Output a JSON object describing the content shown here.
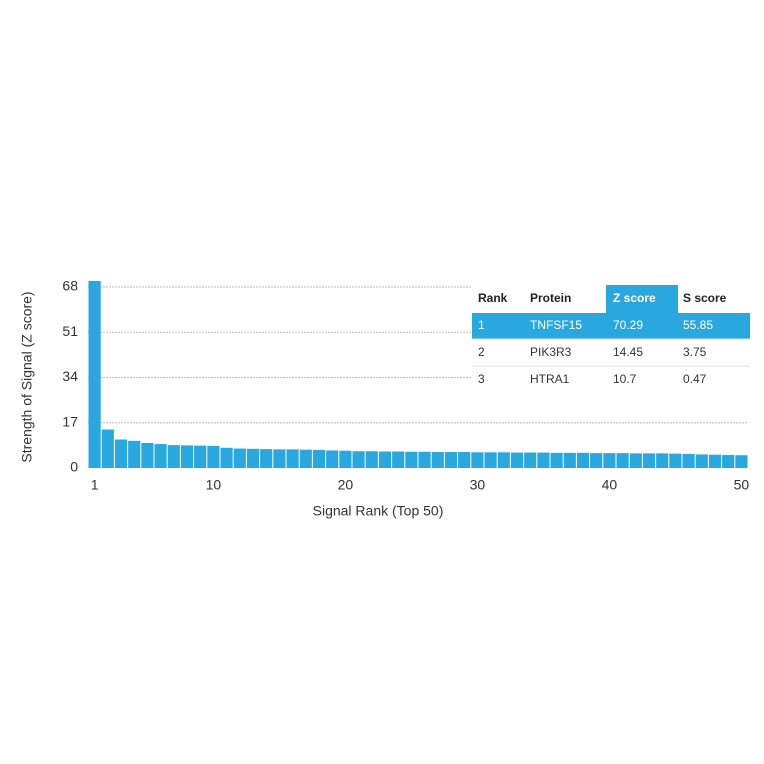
{
  "chart_data": {
    "type": "bar",
    "x_label": "Signal Rank (Top 50)",
    "y_label": "Strength of Signal (Z score)",
    "x": [
      1,
      2,
      3,
      4,
      5,
      6,
      7,
      8,
      9,
      10,
      11,
      12,
      13,
      14,
      15,
      16,
      17,
      18,
      19,
      20,
      21,
      22,
      23,
      24,
      25,
      26,
      27,
      28,
      29,
      30,
      31,
      32,
      33,
      34,
      35,
      36,
      37,
      38,
      39,
      40,
      41,
      42,
      43,
      44,
      45,
      46,
      47,
      48,
      49,
      50
    ],
    "values": [
      70.29,
      14.45,
      10.7,
      10.2,
      9.4,
      9.0,
      8.6,
      8.5,
      8.4,
      8.3,
      7.6,
      7.3,
      7.2,
      7.1,
      7.0,
      7.0,
      6.9,
      6.8,
      6.6,
      6.5,
      6.3,
      6.3,
      6.2,
      6.2,
      6.1,
      6.1,
      6.0,
      6.0,
      6.0,
      5.9,
      5.9,
      5.9,
      5.8,
      5.8,
      5.8,
      5.7,
      5.7,
      5.7,
      5.6,
      5.6,
      5.6,
      5.5,
      5.5,
      5.5,
      5.4,
      5.3,
      5.1,
      5.0,
      4.9,
      4.8
    ],
    "color": "#29a8e0",
    "xlim": [
      0.5,
      50.5
    ],
    "xticks": [
      1,
      10,
      20,
      30,
      40,
      50
    ],
    "ylim": [
      0,
      68
    ],
    "yticks": [
      0,
      17,
      34,
      51,
      68
    ],
    "grid": true,
    "table": {
      "columns": [
        "Rank",
        "Protein",
        "Z score",
        "S score"
      ],
      "rows": [
        [
          1,
          "TNFSF15",
          70.29,
          55.85
        ],
        [
          2,
          "PIK3R3",
          14.45,
          3.75
        ],
        [
          3,
          "HTRA1",
          10.7,
          0.47
        ]
      ]
    }
  }
}
